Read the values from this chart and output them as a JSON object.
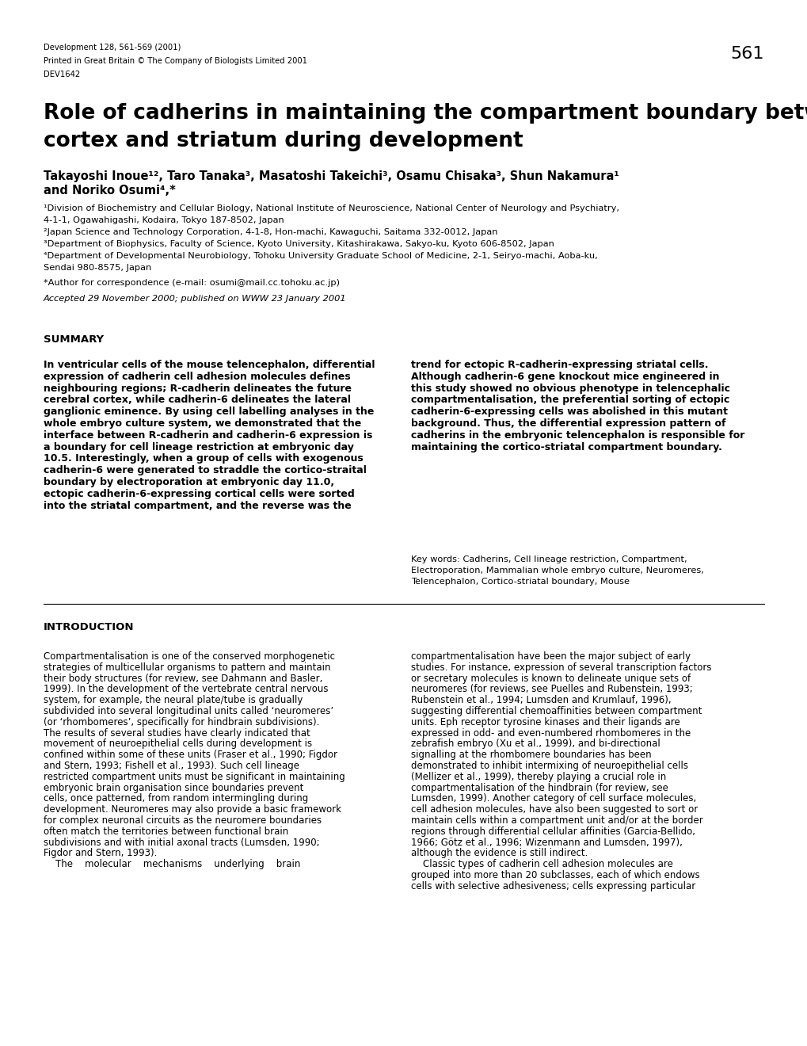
{
  "background_color": "#ffffff",
  "page_width": 10.2,
  "page_height": 13.2,
  "dpi": 100,
  "header_line1": "Development 128, 561-569 (2001)",
  "header_line2": "Printed in Great Britain © The Company of Biologists Limited 2001",
  "header_line3": "DEV1642",
  "page_number": "561",
  "title_line1": "Role of cadherins in maintaining the compartment boundary between the",
  "title_line2": "cortex and striatum during development",
  "authors_line1": "Takayoshi Inoue¹², Taro Tanaka³, Masatoshi Takeichi³, Osamu Chisaka³, Shun Nakamura¹",
  "authors_line2": "and Noriko Osumi⁴,*",
  "affil1": "¹Division of Biochemistry and Cellular Biology, National Institute of Neuroscience, National Center of Neurology and Psychiatry,",
  "affil1b": "4-1-1, Ogawahigashi, Kodaira, Tokyo 187-8502, Japan",
  "affil2": "²Japan Science and Technology Corporation, 4-1-8, Hon-machi, Kawaguchi, Saitama 332-0012, Japan",
  "affil3": "³Department of Biophysics, Faculty of Science, Kyoto University, Kitashirakawa, Sakyo-ku, Kyoto 606-8502, Japan",
  "affil4": "⁴Department of Developmental Neurobiology, Tohoku University Graduate School of Medicine, 2-1, Seiryo-machi, Aoba-ku,",
  "affil4b": "Sendai 980-8575, Japan",
  "affil_star": "*Author for correspondence (e-mail: osumi@mail.cc.tohoku.ac.jp)",
  "accepted": "Accepted 29 November 2000; published on WWW 23 January 2001",
  "summary_header": "SUMMARY",
  "summary_left_lines": [
    "In ventricular cells of the mouse telencephalon, differential",
    "expression of cadherin cell adhesion molecules defines",
    "neighbouring regions; R-cadherin delineates the future",
    "cerebral cortex, while cadherin-6 delineates the lateral",
    "ganglionic eminence. By using cell labelling analyses in the",
    "whole embryo culture system, we demonstrated that the",
    "interface between R-cadherin and cadherin-6 expression is",
    "a boundary for cell lineage restriction at embryonic day",
    "10.5. Interestingly, when a group of cells with exogenous",
    "cadherin-6 were generated to straddle the cortico-straital",
    "boundary by electroporation at embryonic day 11.0,",
    "ectopic cadherin-6-expressing cortical cells were sorted",
    "into the striatal compartment, and the reverse was the"
  ],
  "summary_right_lines": [
    "trend for ectopic R-cadherin-expressing striatal cells.",
    "Although cadherin-6 gene knockout mice engineered in",
    "this study showed no obvious phenotype in telencephalic",
    "compartmentalisation, the preferential sorting of ectopic",
    "cadherin-6-expressing cells was abolished in this mutant",
    "background. Thus, the differential expression pattern of",
    "cadherins in the embryonic telencephalon is responsible for",
    "maintaining the cortico-striatal compartment boundary."
  ],
  "keywords_lines": [
    "Key words: Cadherins, Cell lineage restriction, Compartment,",
    "Electroporation, Mammalian whole embryo culture, Neuromeres,",
    "Telencephalon, Cortico-striatal boundary, Mouse"
  ],
  "intro_header": "INTRODUCTION",
  "intro_left_lines": [
    "Compartmentalisation is one of the conserved morphogenetic",
    "strategies of multicellular organisms to pattern and maintain",
    "their body structures (for review, see Dahmann and Basler,",
    "1999). In the development of the vertebrate central nervous",
    "system, for example, the neural plate/tube is gradually",
    "subdivided into several longitudinal units called ‘neuromeres’",
    "(or ‘rhombomeres’, specifically for hindbrain subdivisions).",
    "The results of several studies have clearly indicated that",
    "movement of neuroepithelial cells during development is",
    "confined within some of these units (Fraser et al., 1990; Figdor",
    "and Stern, 1993; Fishell et al., 1993). Such cell lineage",
    "restricted compartment units must be significant in maintaining",
    "embryonic brain organisation since boundaries prevent",
    "cells, once patterned, from random intermingling during",
    "development. Neuromeres may also provide a basic framework",
    "for complex neuronal circuits as the neuromere boundaries",
    "often match the territories between functional brain",
    "subdivisions and with initial axonal tracts (Lumsden, 1990;",
    "Figdor and Stern, 1993).",
    "    The    molecular    mechanisms    underlying    brain"
  ],
  "intro_right_lines": [
    "compartmentalisation have been the major subject of early",
    "studies. For instance, expression of several transcription factors",
    "or secretary molecules is known to delineate unique sets of",
    "neuromeres (for reviews, see Puelles and Rubenstein, 1993;",
    "Rubenstein et al., 1994; Lumsden and Krumlauf, 1996),",
    "suggesting differential chemoaffinities between compartment",
    "units. Eph receptor tyrosine kinases and their ligands are",
    "expressed in odd- and even-numbered rhombomeres in the",
    "zebrafish embryo (Xu et al., 1999), and bi-directional",
    "signalling at the rhombomere boundaries has been",
    "demonstrated to inhibit intermixing of neuroepithelial cells",
    "(Mellizer et al., 1999), thereby playing a crucial role in",
    "compartmentalisation of the hindbrain (for review, see",
    "Lumsden, 1999). Another category of cell surface molecules,",
    "cell adhesion molecules, have also been suggested to sort or",
    "maintain cells within a compartment unit and/or at the border",
    "regions through differential cellular affinities (Garcia-Bellido,",
    "1966; Götz et al., 1996; Wizenmann and Lumsden, 1997),",
    "although the evidence is still indirect.",
    "    Classic types of cadherin cell adhesion molecules are",
    "grouped into more than 20 subclasses, each of which endows",
    "cells with selective adhesiveness; cells expressing particular"
  ]
}
